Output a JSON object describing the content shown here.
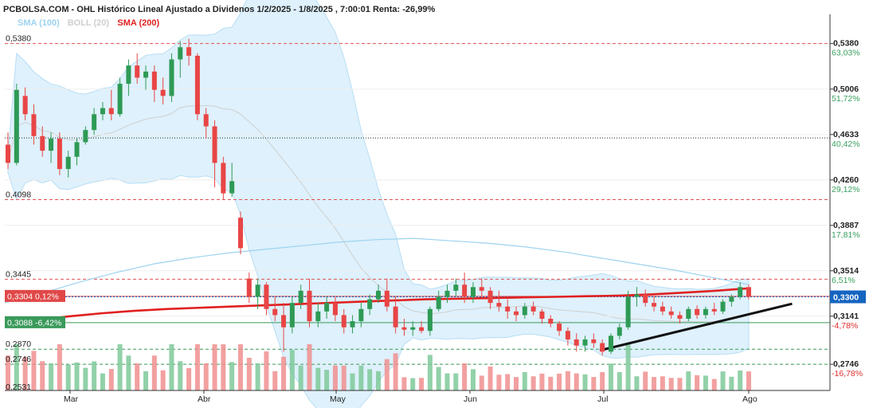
{
  "chart_data": {
    "type": "candlestick",
    "title": "PCBOLSA.COM - OHL Histórico Lineal Ajustado a Dividenos 1/2/2025 - 1/8/2025 , 7:00:01 Renta: -26,99%",
    "legend": [
      {
        "name": "SMA (100)",
        "color": "#9dd3f0"
      },
      {
        "name": "BOLL (20)",
        "color": "#cfcfcf"
      },
      {
        "name": "SMA (200)",
        "color": "#e02020"
      }
    ],
    "ylim": [
      0.2531,
      0.562
    ],
    "right_axis": [
      {
        "value": 0.538,
        "label": "0,5380",
        "pct": "63,03%",
        "pct_color": "#3aa060"
      },
      {
        "value": 0.5006,
        "label": "0,5006",
        "pct": "51,72%",
        "pct_color": "#3aa060"
      },
      {
        "value": 0.4633,
        "label": "0,4633",
        "pct": "40,42%",
        "pct_color": "#3aa060"
      },
      {
        "value": 0.426,
        "label": "0,4260",
        "pct": "29,12%",
        "pct_color": "#3aa060"
      },
      {
        "value": 0.3887,
        "label": "0,3887",
        "pct": "17,81%",
        "pct_color": "#3aa060"
      },
      {
        "value": 0.3514,
        "label": "0,3514",
        "pct": "6,51%",
        "pct_color": "#3aa060"
      },
      {
        "value": 0.3141,
        "label": "0,3141",
        "pct": "-4,78%",
        "pct_color": "#e03030"
      },
      {
        "value": 0.2746,
        "label": "0,2746",
        "pct": "-16,78%",
        "pct_color": "#e03030"
      }
    ],
    "left_labels": [
      {
        "value": 0.538,
        "label": "0,5380"
      },
      {
        "value": 0.4098,
        "label": "0,4098"
      },
      {
        "value": 0.3445,
        "label": "0,3445"
      },
      {
        "value": 0.287,
        "label": "0,2870"
      },
      {
        "value": 0.2746,
        "label": "0,2746"
      },
      {
        "value": 0.2531,
        "label": "0,2531"
      }
    ],
    "left_boxes": [
      {
        "value": 0.3304,
        "label": "0,3304",
        "pct": "0,12%",
        "color": "#e04848"
      },
      {
        "value": 0.3088,
        "label": "0,3088",
        "pct": "-6,42%",
        "color": "#3a9a5a"
      }
    ],
    "current": {
      "value": 0.33,
      "label": "0,3300",
      "color": "#1565c0"
    },
    "months": [
      "Mar",
      "Abr",
      "May",
      "Jun",
      "Jul",
      "Ago"
    ],
    "candles": [
      {
        "o": 0.455,
        "h": 0.465,
        "l": 0.435,
        "c": 0.44
      },
      {
        "o": 0.44,
        "h": 0.505,
        "l": 0.438,
        "c": 0.5
      },
      {
        "o": 0.495,
        "h": 0.502,
        "l": 0.475,
        "c": 0.48
      },
      {
        "o": 0.48,
        "h": 0.488,
        "l": 0.455,
        "c": 0.462
      },
      {
        "o": 0.462,
        "h": 0.47,
        "l": 0.445,
        "c": 0.45
      },
      {
        "o": 0.45,
        "h": 0.465,
        "l": 0.44,
        "c": 0.46
      },
      {
        "o": 0.46,
        "h": 0.465,
        "l": 0.43,
        "c": 0.435
      },
      {
        "o": 0.435,
        "h": 0.45,
        "l": 0.428,
        "c": 0.445
      },
      {
        "o": 0.445,
        "h": 0.46,
        "l": 0.438,
        "c": 0.457
      },
      {
        "o": 0.457,
        "h": 0.47,
        "l": 0.455,
        "c": 0.467
      },
      {
        "o": 0.467,
        "h": 0.485,
        "l": 0.463,
        "c": 0.48
      },
      {
        "o": 0.48,
        "h": 0.49,
        "l": 0.475,
        "c": 0.485
      },
      {
        "o": 0.485,
        "h": 0.5,
        "l": 0.475,
        "c": 0.48
      },
      {
        "o": 0.48,
        "h": 0.51,
        "l": 0.478,
        "c": 0.505
      },
      {
        "o": 0.505,
        "h": 0.525,
        "l": 0.495,
        "c": 0.52
      },
      {
        "o": 0.52,
        "h": 0.53,
        "l": 0.505,
        "c": 0.51
      },
      {
        "o": 0.51,
        "h": 0.52,
        "l": 0.5,
        "c": 0.515
      },
      {
        "o": 0.515,
        "h": 0.52,
        "l": 0.49,
        "c": 0.5
      },
      {
        "o": 0.5,
        "h": 0.51,
        "l": 0.488,
        "c": 0.495
      },
      {
        "o": 0.495,
        "h": 0.53,
        "l": 0.49,
        "c": 0.525
      },
      {
        "o": 0.525,
        "h": 0.54,
        "l": 0.51,
        "c": 0.535
      },
      {
        "o": 0.535,
        "h": 0.542,
        "l": 0.52,
        "c": 0.528
      },
      {
        "o": 0.528,
        "h": 0.53,
        "l": 0.475,
        "c": 0.48
      },
      {
        "o": 0.48,
        "h": 0.485,
        "l": 0.46,
        "c": 0.47
      },
      {
        "o": 0.47,
        "h": 0.475,
        "l": 0.42,
        "c": 0.44
      },
      {
        "o": 0.44,
        "h": 0.445,
        "l": 0.41,
        "c": 0.415
      },
      {
        "o": 0.415,
        "h": 0.44,
        "l": 0.412,
        "c": 0.425
      },
      {
        "o": 0.395,
        "h": 0.4,
        "l": 0.365,
        "c": 0.37
      },
      {
        "o": 0.345,
        "h": 0.35,
        "l": 0.325,
        "c": 0.33
      },
      {
        "o": 0.33,
        "h": 0.345,
        "l": 0.32,
        "c": 0.34
      },
      {
        "o": 0.34,
        "h": 0.342,
        "l": 0.315,
        "c": 0.32
      },
      {
        "o": 0.32,
        "h": 0.33,
        "l": 0.31,
        "c": 0.315
      },
      {
        "o": 0.315,
        "h": 0.325,
        "l": 0.285,
        "c": 0.305
      },
      {
        "o": 0.305,
        "h": 0.33,
        "l": 0.3,
        "c": 0.325
      },
      {
        "o": 0.325,
        "h": 0.34,
        "l": 0.32,
        "c": 0.335
      },
      {
        "o": 0.335,
        "h": 0.345,
        "l": 0.305,
        "c": 0.31
      },
      {
        "o": 0.31,
        "h": 0.325,
        "l": 0.305,
        "c": 0.318
      },
      {
        "o": 0.318,
        "h": 0.33,
        "l": 0.312,
        "c": 0.325
      },
      {
        "o": 0.325,
        "h": 0.33,
        "l": 0.31,
        "c": 0.315
      },
      {
        "o": 0.315,
        "h": 0.32,
        "l": 0.3,
        "c": 0.305
      },
      {
        "o": 0.305,
        "h": 0.315,
        "l": 0.3,
        "c": 0.31
      },
      {
        "o": 0.31,
        "h": 0.325,
        "l": 0.305,
        "c": 0.32
      },
      {
        "o": 0.32,
        "h": 0.332,
        "l": 0.315,
        "c": 0.328
      },
      {
        "o": 0.328,
        "h": 0.34,
        "l": 0.325,
        "c": 0.335
      },
      {
        "o": 0.335,
        "h": 0.345,
        "l": 0.318,
        "c": 0.322
      },
      {
        "o": 0.322,
        "h": 0.33,
        "l": 0.3,
        "c": 0.305
      },
      {
        "o": 0.305,
        "h": 0.312,
        "l": 0.298,
        "c": 0.303
      },
      {
        "o": 0.303,
        "h": 0.31,
        "l": 0.298,
        "c": 0.305
      },
      {
        "o": 0.305,
        "h": 0.31,
        "l": 0.3,
        "c": 0.302
      },
      {
        "o": 0.302,
        "h": 0.322,
        "l": 0.298,
        "c": 0.32
      },
      {
        "o": 0.32,
        "h": 0.335,
        "l": 0.318,
        "c": 0.33
      },
      {
        "o": 0.33,
        "h": 0.34,
        "l": 0.325,
        "c": 0.335
      },
      {
        "o": 0.335,
        "h": 0.345,
        "l": 0.33,
        "c": 0.34
      },
      {
        "o": 0.34,
        "h": 0.35,
        "l": 0.325,
        "c": 0.33
      },
      {
        "o": 0.33,
        "h": 0.342,
        "l": 0.325,
        "c": 0.338
      },
      {
        "o": 0.338,
        "h": 0.345,
        "l": 0.33,
        "c": 0.335
      },
      {
        "o": 0.335,
        "h": 0.338,
        "l": 0.32,
        "c": 0.325
      },
      {
        "o": 0.325,
        "h": 0.335,
        "l": 0.318,
        "c": 0.322
      },
      {
        "o": 0.322,
        "h": 0.328,
        "l": 0.312,
        "c": 0.318
      },
      {
        "o": 0.318,
        "h": 0.322,
        "l": 0.31,
        "c": 0.315
      },
      {
        "o": 0.315,
        "h": 0.325,
        "l": 0.312,
        "c": 0.322
      },
      {
        "o": 0.322,
        "h": 0.326,
        "l": 0.315,
        "c": 0.318
      },
      {
        "o": 0.318,
        "h": 0.32,
        "l": 0.308,
        "c": 0.312
      },
      {
        "o": 0.312,
        "h": 0.315,
        "l": 0.305,
        "c": 0.308
      },
      {
        "o": 0.308,
        "h": 0.31,
        "l": 0.298,
        "c": 0.302
      },
      {
        "o": 0.302,
        "h": 0.305,
        "l": 0.29,
        "c": 0.295
      },
      {
        "o": 0.295,
        "h": 0.3,
        "l": 0.285,
        "c": 0.29
      },
      {
        "o": 0.29,
        "h": 0.298,
        "l": 0.285,
        "c": 0.295
      },
      {
        "o": 0.295,
        "h": 0.3,
        "l": 0.288,
        "c": 0.292
      },
      {
        "o": 0.292,
        "h": 0.295,
        "l": 0.282,
        "c": 0.285
      },
      {
        "o": 0.285,
        "h": 0.3,
        "l": 0.283,
        "c": 0.298
      },
      {
        "o": 0.298,
        "h": 0.308,
        "l": 0.295,
        "c": 0.305
      },
      {
        "o": 0.305,
        "h": 0.335,
        "l": 0.303,
        "c": 0.33
      },
      {
        "o": 0.33,
        "h": 0.338,
        "l": 0.322,
        "c": 0.332
      },
      {
        "o": 0.332,
        "h": 0.336,
        "l": 0.322,
        "c": 0.325
      },
      {
        "o": 0.325,
        "h": 0.33,
        "l": 0.318,
        "c": 0.322
      },
      {
        "o": 0.322,
        "h": 0.326,
        "l": 0.315,
        "c": 0.318
      },
      {
        "o": 0.318,
        "h": 0.322,
        "l": 0.312,
        "c": 0.315
      },
      {
        "o": 0.315,
        "h": 0.318,
        "l": 0.308,
        "c": 0.312
      },
      {
        "o": 0.312,
        "h": 0.322,
        "l": 0.31,
        "c": 0.32
      },
      {
        "o": 0.32,
        "h": 0.323,
        "l": 0.312,
        "c": 0.315
      },
      {
        "o": 0.315,
        "h": 0.322,
        "l": 0.312,
        "c": 0.32
      },
      {
        "o": 0.32,
        "h": 0.325,
        "l": 0.315,
        "c": 0.318
      },
      {
        "o": 0.318,
        "h": 0.328,
        "l": 0.316,
        "c": 0.326
      },
      {
        "o": 0.326,
        "h": 0.332,
        "l": 0.322,
        "c": 0.33
      },
      {
        "o": 0.33,
        "h": 0.342,
        "l": 0.328,
        "c": 0.338
      },
      {
        "o": 0.338,
        "h": 0.34,
        "l": 0.328,
        "c": 0.33
      }
    ],
    "sma200": [
      0.3085,
      0.311,
      0.314,
      0.3165,
      0.3185,
      0.32,
      0.321,
      0.322,
      0.323,
      0.324,
      0.325,
      0.326,
      0.327,
      0.328,
      0.3285,
      0.329,
      0.3295,
      0.33,
      0.3305,
      0.331,
      0.332,
      0.3335,
      0.335,
      0.337
    ],
    "sma100": [
      0.325,
      0.333,
      0.342,
      0.35,
      0.357,
      0.362,
      0.366,
      0.369,
      0.372,
      0.375,
      0.377,
      0.378,
      0.376,
      0.374,
      0.371,
      0.367,
      0.362,
      0.357,
      0.352,
      0.346,
      0.34
    ],
    "trendline": [
      {
        "i": 69,
        "v": 0.286
      },
      {
        "i": 89,
        "v": 0.323
      }
    ]
  }
}
